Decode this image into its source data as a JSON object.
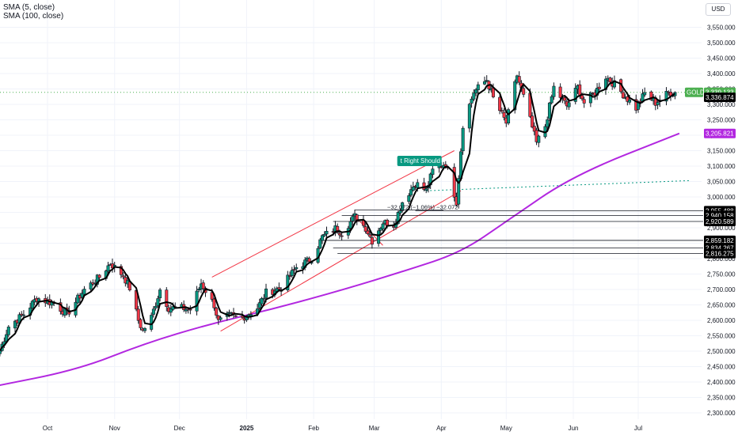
{
  "legend": {
    "sma5": "SMA (5, close)",
    "sma100": "SMA (100, close)"
  },
  "currency": "USD",
  "colors": {
    "up": "#089981",
    "down": "#f23645",
    "wick": "#131722",
    "sma5": "#000000",
    "sma100": "#b227e0",
    "channel": "#f23645",
    "last_price": "#4caf50",
    "projection": "#089981",
    "grid": "#f0f3fa"
  },
  "chart_data": {
    "type": "candlestick",
    "symbol": "GOLD",
    "ylim": [
      2300,
      3550
    ],
    "y_ticks": [
      "2,300.000",
      "2,350.000",
      "2,400.000",
      "2,450.000",
      "2,500.000",
      "2,550.000",
      "2,600.000",
      "2,650.000",
      "2,700.000",
      "2,750.000",
      "2,800.000",
      "2,850.000",
      "2,900.000",
      "2,950.000",
      "3,000.000",
      "3,050.000",
      "3,100.000",
      "3,150.000",
      "3,200.000",
      "3,250.000",
      "3,300.000",
      "3,350.000",
      "3,400.000",
      "3,450.000",
      "3,500.000",
      "3,550.000"
    ],
    "x_ticks": [
      {
        "label": "Oct",
        "date": "2024-10-01"
      },
      {
        "label": "Nov",
        "date": "2024-11-01"
      },
      {
        "label": "Dec",
        "date": "2024-12-01"
      },
      {
        "label": "2025",
        "date": "2025-01-01"
      },
      {
        "label": "Feb",
        "date": "2025-02-01"
      },
      {
        "label": "Mar",
        "date": "2025-03-01"
      },
      {
        "label": "Apr",
        "date": "2025-04-01"
      },
      {
        "label": "May",
        "date": "2025-05-01"
      },
      {
        "label": "Jun",
        "date": "2025-06-01"
      },
      {
        "label": "Jul",
        "date": "2025-07-01"
      }
    ],
    "close_anchors": [
      [
        "2024-09-09",
        2502
      ],
      [
        "2024-09-13",
        2580
      ],
      [
        "2024-09-20",
        2620
      ],
      [
        "2024-09-26",
        2672
      ],
      [
        "2024-10-04",
        2655
      ],
      [
        "2024-10-10",
        2620
      ],
      [
        "2024-10-18",
        2700
      ],
      [
        "2024-10-25",
        2740
      ],
      [
        "2024-10-30",
        2785
      ],
      [
        "2024-11-05",
        2745
      ],
      [
        "2024-11-08",
        2705
      ],
      [
        "2024-11-12",
        2600
      ],
      [
        "2024-11-14",
        2565
      ],
      [
        "2024-11-18",
        2610
      ],
      [
        "2024-11-22",
        2700
      ],
      [
        "2024-11-26",
        2640
      ],
      [
        "2024-12-02",
        2640
      ],
      [
        "2024-12-06",
        2635
      ],
      [
        "2024-12-11",
        2720
      ],
      [
        "2024-12-17",
        2650
      ],
      [
        "2024-12-19",
        2595
      ],
      [
        "2024-12-24",
        2615
      ],
      [
        "2024-12-30",
        2608
      ],
      [
        "2025-01-06",
        2640
      ],
      [
        "2025-01-10",
        2690
      ],
      [
        "2025-01-17",
        2705
      ],
      [
        "2025-01-24",
        2772
      ],
      [
        "2025-01-31",
        2800
      ],
      [
        "2025-02-05",
        2870
      ],
      [
        "2025-02-11",
        2898
      ],
      [
        "2025-02-14",
        2884
      ],
      [
        "2025-02-20",
        2937
      ],
      [
        "2025-02-25",
        2900
      ],
      [
        "2025-02-28",
        2858
      ],
      [
        "2025-03-05",
        2918
      ],
      [
        "2025-03-10",
        2910
      ],
      [
        "2025-03-14",
        2984
      ],
      [
        "2025-03-20",
        3045
      ],
      [
        "2025-03-25",
        3020
      ],
      [
        "2025-03-28",
        3085
      ],
      [
        "2025-04-03",
        3110
      ],
      [
        "2025-04-08",
        2985
      ],
      [
        "2025-04-11",
        3235
      ],
      [
        "2025-04-16",
        3340
      ],
      [
        "2025-04-22",
        3380
      ],
      [
        "2025-04-25",
        3320
      ],
      [
        "2025-05-01",
        3240
      ],
      [
        "2025-05-06",
        3395
      ],
      [
        "2025-05-09",
        3325
      ],
      [
        "2025-05-15",
        3175
      ],
      [
        "2025-05-19",
        3230
      ],
      [
        "2025-05-23",
        3355
      ],
      [
        "2025-05-29",
        3295
      ],
      [
        "2025-06-03",
        3355
      ],
      [
        "2025-06-06",
        3305
      ],
      [
        "2025-06-11",
        3338
      ],
      [
        "2025-06-16",
        3390
      ],
      [
        "2025-06-20",
        3365
      ],
      [
        "2025-06-25",
        3325
      ],
      [
        "2025-06-30",
        3288
      ],
      [
        "2025-07-04",
        3336
      ],
      [
        "2025-07-09",
        3305
      ],
      [
        "2025-07-15",
        3338
      ],
      [
        "2025-07-18",
        3337
      ]
    ],
    "series": [
      {
        "name": "SMA (5, close)",
        "color": "#000000"
      },
      {
        "name": "SMA (100, close)",
        "color": "#b227e0",
        "last_value": "3,205.821"
      }
    ],
    "price_labels": [
      {
        "symbol": "GOLD",
        "text": "3,339.133",
        "kind": "last"
      },
      {
        "text": "3,336.874",
        "kind": "sma5"
      },
      {
        "text": "3,205.821",
        "kind": "sma100"
      }
    ],
    "levels": [
      "2,955.488",
      "2,940.158",
      "2,920.589",
      "2,859.182",
      "2,834.267",
      "2,816.275"
    ],
    "annotations": {
      "pattern_label": "t Right Should",
      "measure_text": "−32.072 (−1.06%) −32.072"
    }
  }
}
